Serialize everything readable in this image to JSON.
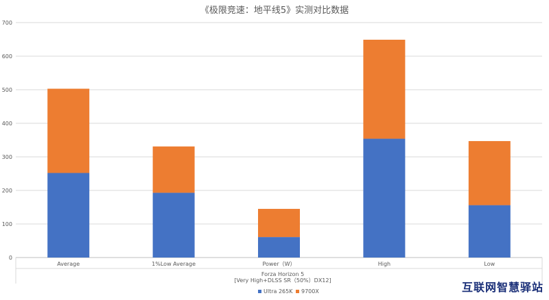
{
  "chart_data": {
    "type": "bar",
    "stacked": true,
    "title": "《极限竞速：地平线5》实测对比数据",
    "categories": [
      "Average",
      "1%Low Average",
      "Power（W）",
      "High",
      "Low"
    ],
    "series": [
      {
        "name": "Ultra 265K",
        "color": "#4472c4",
        "values": [
          252,
          193,
          61,
          354,
          156
        ]
      },
      {
        "name": "9700X",
        "color": "#ed7d31",
        "values": [
          251,
          138,
          84,
          295,
          191
        ]
      }
    ],
    "axis_group_label_line1": "Forza Horizon 5",
    "axis_group_label_line2": "[Very High+DLSS SR（50%）DX12]",
    "ylim": [
      0,
      700
    ],
    "yticks": [
      0,
      100,
      200,
      300,
      400,
      500,
      600,
      700
    ],
    "grid": true,
    "legend_position": "bottom"
  },
  "watermark": "互联网智慧驿站"
}
